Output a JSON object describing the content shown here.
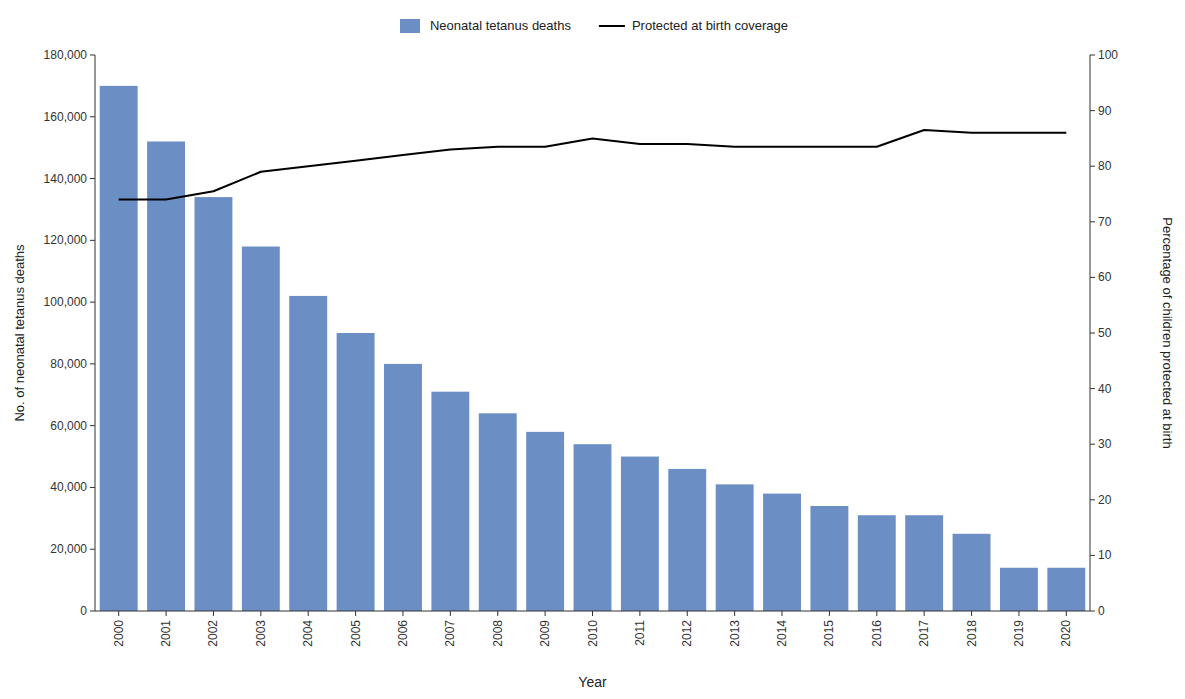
{
  "chart_data": {
    "type": "bar",
    "categories": [
      "2000",
      "2001",
      "2002",
      "2003",
      "2004",
      "2005",
      "2006",
      "2007",
      "2008",
      "2009",
      "2010",
      "2011",
      "2012",
      "2013",
      "2014",
      "2015",
      "2016",
      "2017",
      "2018",
      "2019",
      "2020"
    ],
    "series": [
      {
        "name": "Neonatal tetanus deaths",
        "type": "bar",
        "color": "#6b8fc4",
        "values": [
          170000,
          152000,
          134000,
          118000,
          102000,
          90000,
          80000,
          71000,
          64000,
          58000,
          54000,
          50000,
          46000,
          41000,
          38000,
          34000,
          31000,
          31000,
          25000,
          14000,
          14000
        ]
      },
      {
        "name": "Protected at birth coverage",
        "type": "line",
        "color": "#000000",
        "axis": "y2",
        "values": [
          74.0,
          74.0,
          75.5,
          79.0,
          80.0,
          81.0,
          82.0,
          83.0,
          83.5,
          83.5,
          85.0,
          84.0,
          84.0,
          83.5,
          83.5,
          83.5,
          83.5,
          86.5,
          86.0,
          86.0,
          86.0
        ]
      }
    ],
    "xlabel": "Year",
    "ylabel": "No. of neonatal tetanus deaths",
    "y2label": "Percentage of children protected at birth",
    "ylim": [
      0,
      180000
    ],
    "yticks": [
      0,
      {
        "value": 20000,
        "label": "20,000"
      },
      {
        "value": 40000,
        "label": "40,000"
      },
      {
        "value": 60000,
        "label": "60,000"
      },
      {
        "value": 80000,
        "label": "80,000"
      },
      {
        "value": 100000,
        "label": "100,000"
      },
      {
        "value": 120000,
        "label": "120,000"
      },
      {
        "value": 140000,
        "label": "140,000"
      },
      {
        "value": 160000,
        "label": "160,000"
      },
      {
        "value": 180000,
        "label": "180,000"
      }
    ],
    "y2lim": [
      0,
      100
    ],
    "y2ticks": [
      0,
      10,
      20,
      30,
      40,
      50,
      60,
      70,
      80,
      90,
      100
    ],
    "legend": "top",
    "grid": false
  }
}
